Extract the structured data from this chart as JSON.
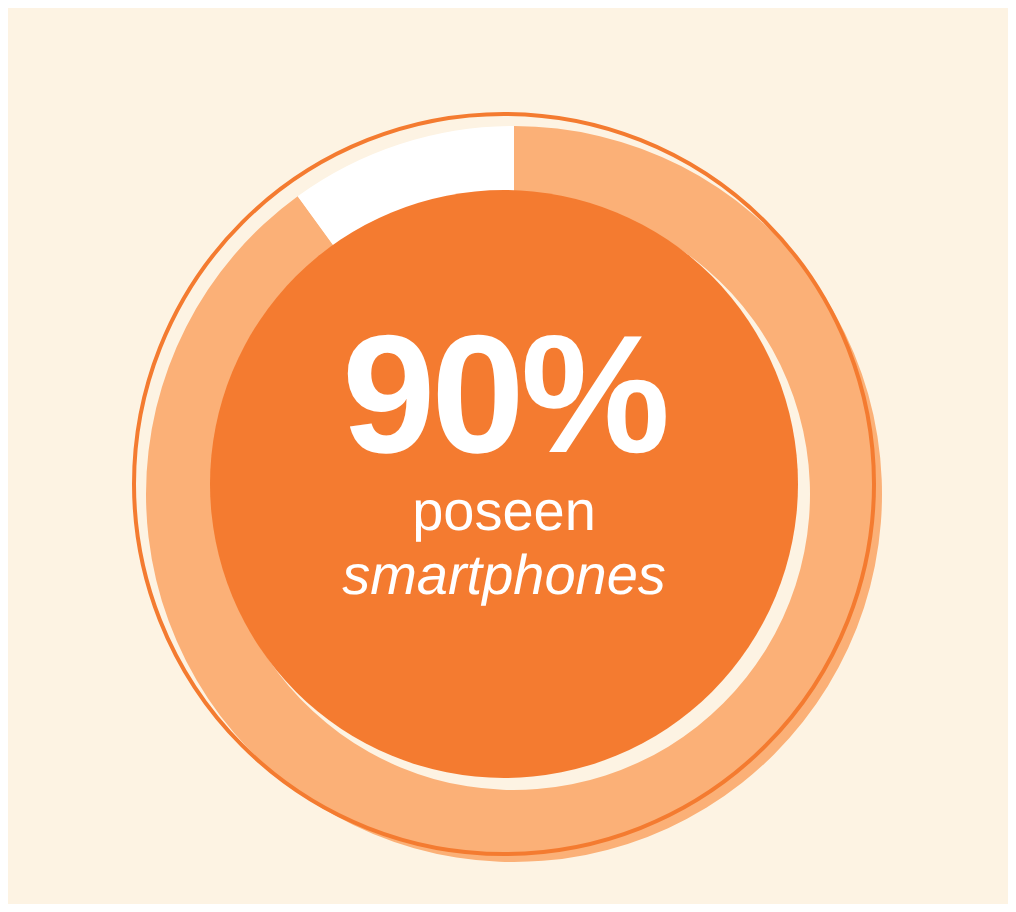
{
  "chart_data": {
    "type": "donut",
    "categories": [
      null,
      null
    ],
    "values": [
      90,
      10
    ],
    "colors": [
      "#fbb077",
      "#ffffff"
    ],
    "value_labels": [
      "90%",
      null
    ],
    "annotations": [
      "poseen",
      "smartphones"
    ]
  }
}
